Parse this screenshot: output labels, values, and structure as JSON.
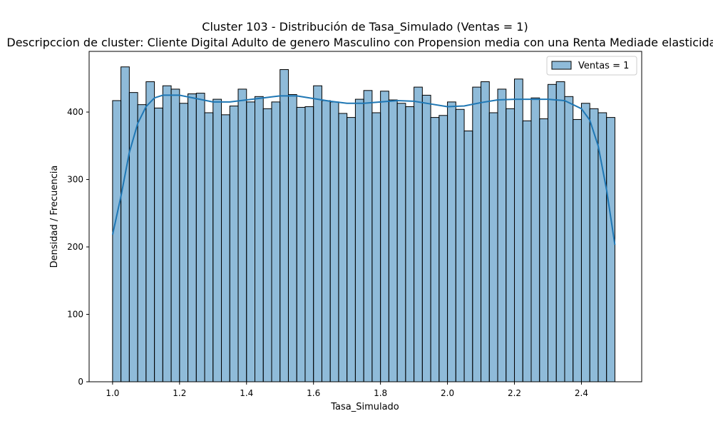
{
  "chart_data": {
    "type": "bar",
    "title": "Cluster 103 - Distribución de Tasa_Simulado (Ventas = 1)",
    "subtitle": "Descripccion de cluster: Cliente Digital Adulto de genero Masculino con Propension media con una Renta Mediade elasticidad",
    "xlabel": "Tasa_Simulado",
    "ylabel": "Densidad / Frecuencia",
    "xlim": [
      0.93,
      2.58
    ],
    "ylim": [
      0,
      490
    ],
    "xticks": [
      1.0,
      1.2,
      1.4,
      1.6,
      1.8,
      2.0,
      2.2,
      2.4
    ],
    "xtick_labels": [
      "1.0",
      "1.2",
      "1.4",
      "1.6",
      "1.8",
      "2.0",
      "2.2",
      "2.4"
    ],
    "yticks": [
      0,
      100,
      200,
      300,
      400
    ],
    "ytick_labels": [
      "0",
      "100",
      "200",
      "300",
      "400"
    ],
    "grid": false,
    "legend": {
      "position": "top-right",
      "entries": [
        "Ventas = 1"
      ]
    },
    "series": [
      {
        "name": "Ventas = 1",
        "color": "#1f77b4",
        "bin_start": 1.0,
        "bin_end": 2.5,
        "values": [
          417,
          467,
          429,
          411,
          445,
          406,
          439,
          434,
          413,
          427,
          428,
          399,
          419,
          396,
          409,
          434,
          415,
          423,
          405,
          415,
          463,
          426,
          407,
          408,
          439,
          417,
          415,
          398,
          392,
          419,
          432,
          399,
          431,
          418,
          413,
          408,
          437,
          425,
          392,
          395,
          415,
          404,
          372,
          437,
          445,
          399,
          434,
          405,
          449,
          387,
          421,
          390,
          441,
          445,
          423,
          389,
          413,
          405,
          399,
          392
        ],
        "kde": {
          "x": [
            1.0,
            1.025,
            1.05,
            1.075,
            1.1,
            1.125,
            1.15,
            1.2,
            1.25,
            1.3,
            1.35,
            1.4,
            1.45,
            1.5,
            1.55,
            1.6,
            1.65,
            1.7,
            1.75,
            1.8,
            1.85,
            1.9,
            1.95,
            2.0,
            2.05,
            2.1,
            2.15,
            2.2,
            2.25,
            2.3,
            2.35,
            2.4,
            2.425,
            2.45,
            2.475,
            2.5
          ],
          "y": [
            218,
            275,
            340,
            383,
            408,
            421,
            425,
            425,
            420,
            415,
            415,
            418,
            421,
            424,
            424,
            420,
            416,
            413,
            413,
            415,
            417,
            416,
            412,
            408,
            409,
            414,
            418,
            419,
            419,
            419,
            417,
            405,
            388,
            350,
            285,
            203
          ]
        }
      }
    ]
  }
}
